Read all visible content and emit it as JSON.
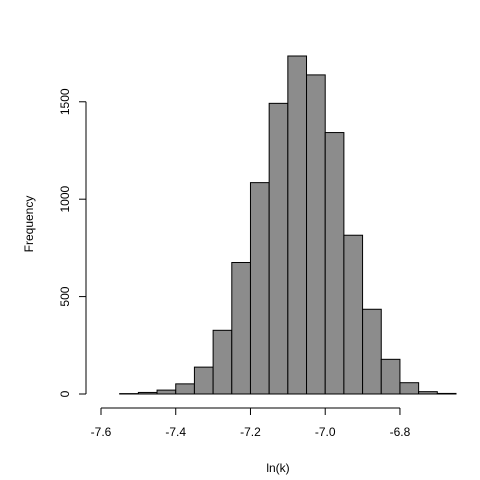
{
  "chart_data": {
    "type": "bar",
    "subtype": "histogram",
    "xlabel": "ln(k)",
    "ylabel": "Frequency",
    "bin_width": 0.05,
    "bins": [
      {
        "x0": -7.55,
        "x1": -7.5,
        "count": 2
      },
      {
        "x0": -7.5,
        "x1": -7.45,
        "count": 8
      },
      {
        "x0": -7.45,
        "x1": -7.4,
        "count": 20
      },
      {
        "x0": -7.4,
        "x1": -7.35,
        "count": 52
      },
      {
        "x0": -7.35,
        "x1": -7.3,
        "count": 138
      },
      {
        "x0": -7.3,
        "x1": -7.25,
        "count": 327
      },
      {
        "x0": -7.25,
        "x1": -7.2,
        "count": 675
      },
      {
        "x0": -7.2,
        "x1": -7.15,
        "count": 1085
      },
      {
        "x0": -7.15,
        "x1": -7.1,
        "count": 1492
      },
      {
        "x0": -7.1,
        "x1": -7.05,
        "count": 1735
      },
      {
        "x0": -7.05,
        "x1": -7.0,
        "count": 1638
      },
      {
        "x0": -7.0,
        "x1": -6.95,
        "count": 1342
      },
      {
        "x0": -6.95,
        "x1": -6.9,
        "count": 815
      },
      {
        "x0": -6.9,
        "x1": -6.85,
        "count": 435
      },
      {
        "x0": -6.85,
        "x1": -6.8,
        "count": 178
      },
      {
        "x0": -6.8,
        "x1": -6.75,
        "count": 58
      },
      {
        "x0": -6.75,
        "x1": -6.7,
        "count": 12
      },
      {
        "x0": -6.7,
        "x1": -6.65,
        "count": 3
      }
    ],
    "xticks": [
      -7.6,
      -7.4,
      -7.2,
      -7.0,
      -6.8
    ],
    "xtick_labels": [
      "-7.6",
      "-7.4",
      "-7.2",
      "-7.0",
      "-6.8"
    ],
    "yticks": [
      0,
      500,
      1000,
      1500
    ],
    "ytick_labels": [
      "0",
      "500",
      "1000",
      "1500"
    ],
    "xlim": [
      -7.6,
      -6.65
    ],
    "ylim": [
      0,
      1735
    ],
    "grid": false,
    "bar_color": "#8c8c8c",
    "edge_color": "#000000"
  }
}
